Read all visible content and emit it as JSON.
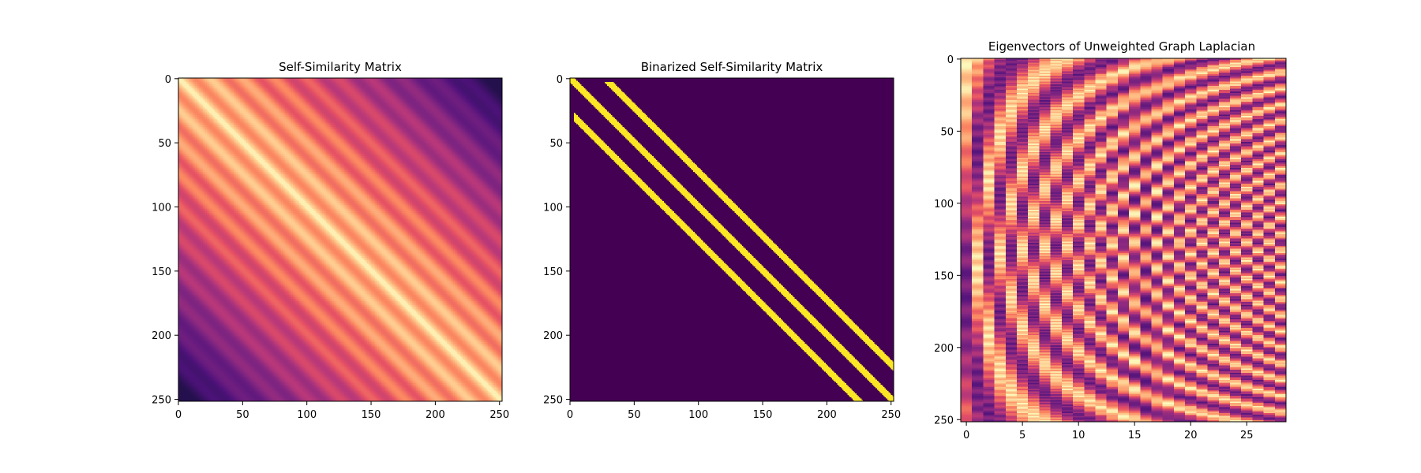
{
  "chart_data": [
    {
      "type": "heatmap",
      "title": "Self-Similarity Matrix",
      "colormap": "magma",
      "rows": 252,
      "cols": 252,
      "xlim": [
        0,
        252
      ],
      "ylim": [
        252,
        0
      ],
      "xticks": [
        0,
        50,
        100,
        150,
        200,
        250
      ],
      "yticks": [
        0,
        50,
        100,
        150,
        200,
        250
      ],
      "description": "bright diagonal with parallel periodic stripes (period about 25 samples), fading toward dark corners"
    },
    {
      "type": "heatmap",
      "title": "Binarized Self-Similarity Matrix",
      "colors": {
        "zero": "#440154",
        "one": "#fde725"
      },
      "rows": 252,
      "cols": 252,
      "xlim": [
        0,
        252
      ],
      "ylim": [
        252,
        0
      ],
      "xticks": [
        0,
        50,
        100,
        150,
        200,
        250
      ],
      "yticks": [
        0,
        50,
        100,
        150,
        200,
        250
      ],
      "bands": [
        {
          "offset": 0
        },
        {
          "offset": 27
        },
        {
          "offset": -27
        }
      ]
    },
    {
      "type": "heatmap",
      "title": "Eigenvectors of Unweighted Graph Laplacian",
      "colormap": "magma",
      "rows": 252,
      "cols": 29,
      "xlim": [
        0,
        29
      ],
      "ylim": [
        252,
        0
      ],
      "xticks": [
        0,
        5,
        10,
        15,
        20,
        25
      ],
      "yticks": [
        0,
        50,
        100,
        150,
        200,
        250
      ]
    }
  ]
}
